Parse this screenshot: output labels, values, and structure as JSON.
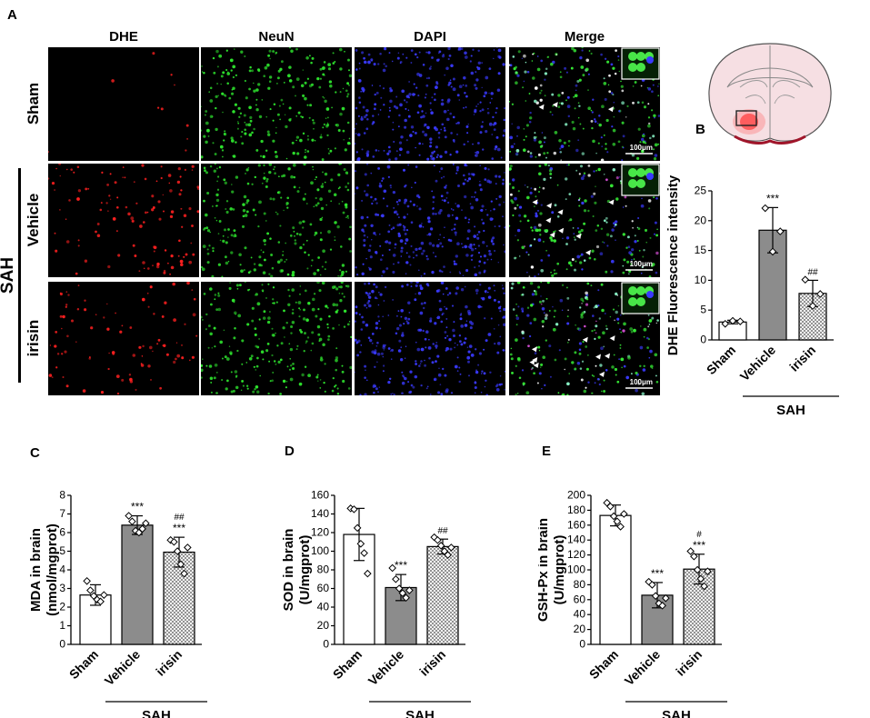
{
  "figure": {
    "panel_letters": {
      "a": "A",
      "b": "B",
      "c": "C",
      "d": "D",
      "e": "E"
    },
    "micrographs": {
      "columns": [
        "DHE",
        "NeuN",
        "DAPI",
        "Merge"
      ],
      "rows": [
        "Sham",
        "Vehicle",
        "irisin"
      ],
      "group_label": "SAH",
      "scale_bar": "100μm",
      "channel_colors": {
        "DHE": "#ff2020",
        "NeuN": "#2ee52e",
        "DAPI": "#3a3aff",
        "Merge": "#c8ffc8"
      }
    }
  },
  "chart_data": [
    {
      "type": "bar",
      "panel": "B",
      "ylabel": "DHE Fluorescence intensity",
      "categories": [
        "Sham",
        "Vehicle",
        "irisin"
      ],
      "group_label": "SAH",
      "values": [
        3,
        18.4,
        7.8
      ],
      "errors": [
        0.3,
        3.8,
        2.2
      ],
      "points": [
        [
          2.7,
          3.2,
          3.1
        ],
        [
          22.1,
          14.8,
          18.2
        ],
        [
          10.1,
          5.7,
          7.7
        ]
      ],
      "significance": [
        "",
        "***",
        "##"
      ],
      "ylim": [
        0,
        25
      ],
      "yticks": [
        0,
        5,
        10,
        15,
        20,
        25
      ],
      "fills": [
        "#ffffff",
        "#8c8c8c",
        "hatch"
      ]
    },
    {
      "type": "bar",
      "panel": "C",
      "ylabel": "MDA in brain (nmol/mgprot)",
      "ylabel_lines": [
        "MDA in brain",
        "(nmol/mgprot)"
      ],
      "categories": [
        "Sham",
        "Vehicle",
        "irisin"
      ],
      "group_label": "SAH",
      "values": [
        2.65,
        6.4,
        4.95
      ],
      "errors": [
        0.55,
        0.5,
        0.8
      ],
      "points": [
        [
          3.4,
          2.9,
          2.6,
          2.4,
          2.3,
          2.65
        ],
        [
          6.9,
          6.6,
          6.1,
          6.0,
          6.2,
          6.5
        ],
        [
          5.6,
          5.5,
          5.0,
          4.3,
          3.8,
          5.2
        ]
      ],
      "significance": [
        "",
        "***",
        "##\n***"
      ],
      "ylim": [
        0,
        8
      ],
      "yticks": [
        0,
        1,
        2,
        3,
        4,
        5,
        6,
        7,
        8
      ],
      "fills": [
        "#ffffff",
        "#8c8c8c",
        "hatch"
      ]
    },
    {
      "type": "bar",
      "panel": "D",
      "ylabel": "SOD in brain (U/mgprot)",
      "ylabel_lines": [
        "SOD in brain",
        "(U/mgprot)"
      ],
      "categories": [
        "Sham",
        "Vehicle",
        "irisin"
      ],
      "group_label": "SAH",
      "values": [
        118,
        61,
        105
      ],
      "errors": [
        28,
        14,
        8
      ],
      "points": [
        [
          146,
          145,
          125,
          108,
          98,
          76
        ],
        [
          82,
          70,
          60,
          55,
          50,
          58
        ],
        [
          115,
          112,
          106,
          100,
          96,
          104
        ]
      ],
      "significance": [
        "",
        "***",
        "##"
      ],
      "ylim": [
        0,
        160
      ],
      "yticks": [
        0,
        20,
        40,
        60,
        80,
        100,
        120,
        140,
        160
      ],
      "fills": [
        "#ffffff",
        "#8c8c8c",
        "hatch"
      ]
    },
    {
      "type": "bar",
      "panel": "E",
      "ylabel": "GSH-Px in brain (U/mgprot)",
      "ylabel_lines": [
        "GSH-Px in brain",
        "(U/mgprot)"
      ],
      "categories": [
        "Sham",
        "Vehicle",
        "irisin"
      ],
      "group_label": "SAH",
      "values": [
        173,
        66,
        101
      ],
      "errors": [
        14,
        17,
        20
      ],
      "points": [
        [
          190,
          185,
          172,
          165,
          158,
          175
        ],
        [
          84,
          80,
          65,
          55,
          52,
          62
        ],
        [
          125,
          118,
          100,
          88,
          78,
          98
        ]
      ],
      "significance": [
        "",
        "***",
        "#\n***"
      ],
      "ylim": [
        0,
        200
      ],
      "yticks": [
        0,
        20,
        40,
        60,
        80,
        100,
        120,
        140,
        160,
        180,
        200
      ],
      "fills": [
        "#ffffff",
        "#8c8c8c",
        "hatch"
      ]
    }
  ]
}
